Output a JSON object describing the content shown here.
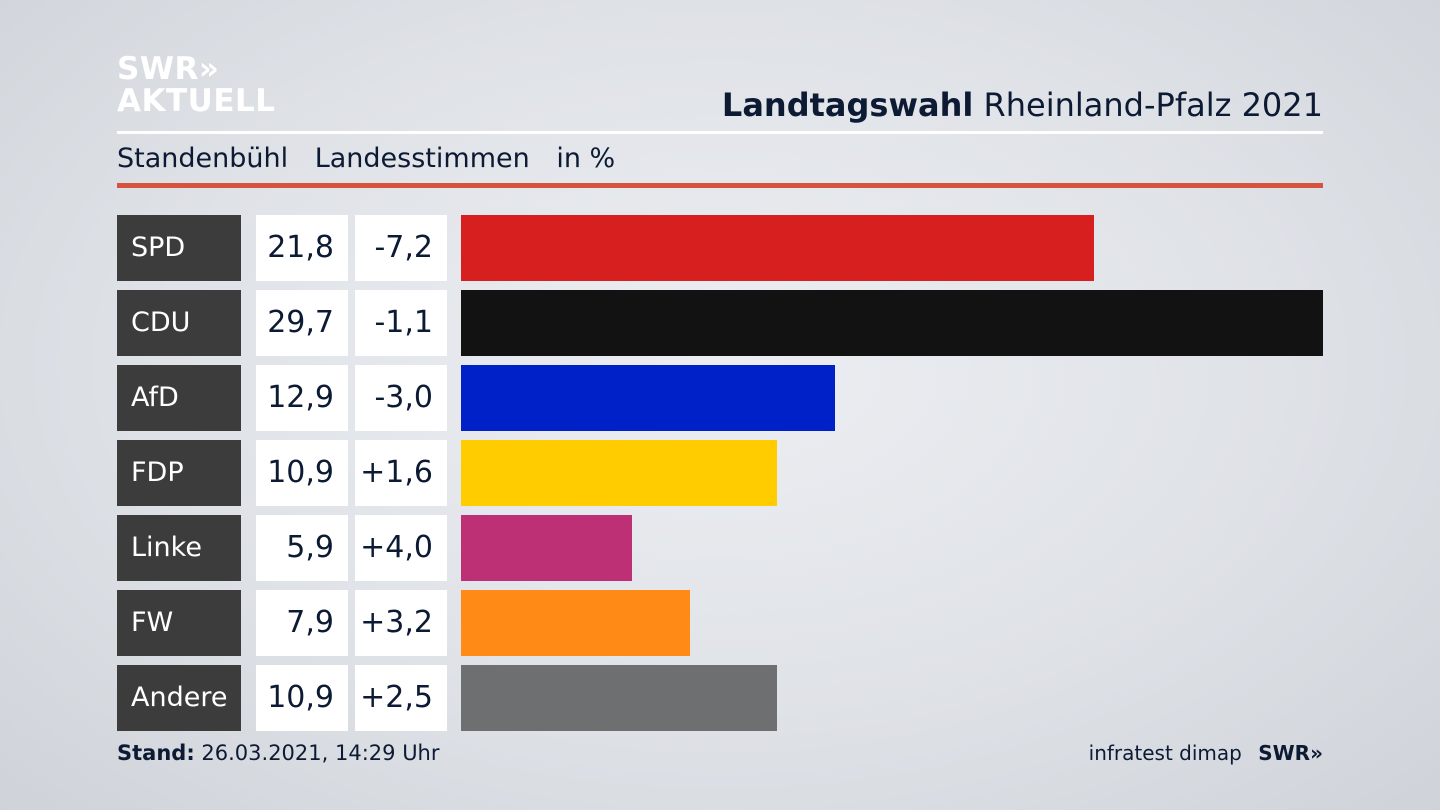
{
  "logo": {
    "line1": "SWR»",
    "line2": "AKTUELL"
  },
  "headline": {
    "bold": "Landtagswahl",
    "rest": "Rheinland-Pfalz 2021"
  },
  "subtitle": {
    "place": "Standenbühl",
    "type": "Landesstimmen",
    "unit": "in %"
  },
  "footer": {
    "stand_label": "Stand:",
    "stand_value": "26.03.2021, 14:29 Uhr",
    "source": "infratest dimap",
    "brand": "SWR»"
  },
  "chart_data": {
    "type": "bar",
    "orientation": "horizontal",
    "title": "Landtagswahl Rheinland-Pfalz 2021",
    "categories": [
      "SPD",
      "CDU",
      "AfD",
      "FDP",
      "Linke",
      "FW",
      "Andere"
    ],
    "values": [
      21.8,
      29.7,
      12.9,
      10.9,
      5.9,
      7.9,
      10.9
    ],
    "value_labels": [
      "21,8",
      "29,7",
      "12,9",
      "10,9",
      "5,9",
      "7,9",
      "10,9"
    ],
    "diff_labels": [
      "-7,2",
      "-1,1",
      "-3,0",
      "+1,6",
      "+4,0",
      "+3,2",
      "+2,5"
    ],
    "diffs": [
      -7.2,
      -1.1,
      -3.0,
      1.6,
      4.0,
      3.2,
      2.5
    ],
    "colors": [
      "#d71f1f",
      "#121212",
      "#0020c8",
      "#ffcc00",
      "#bd3075",
      "#ff8b16",
      "#6e6f71"
    ],
    "xlim": [
      0,
      29.7
    ],
    "grid": false
  }
}
